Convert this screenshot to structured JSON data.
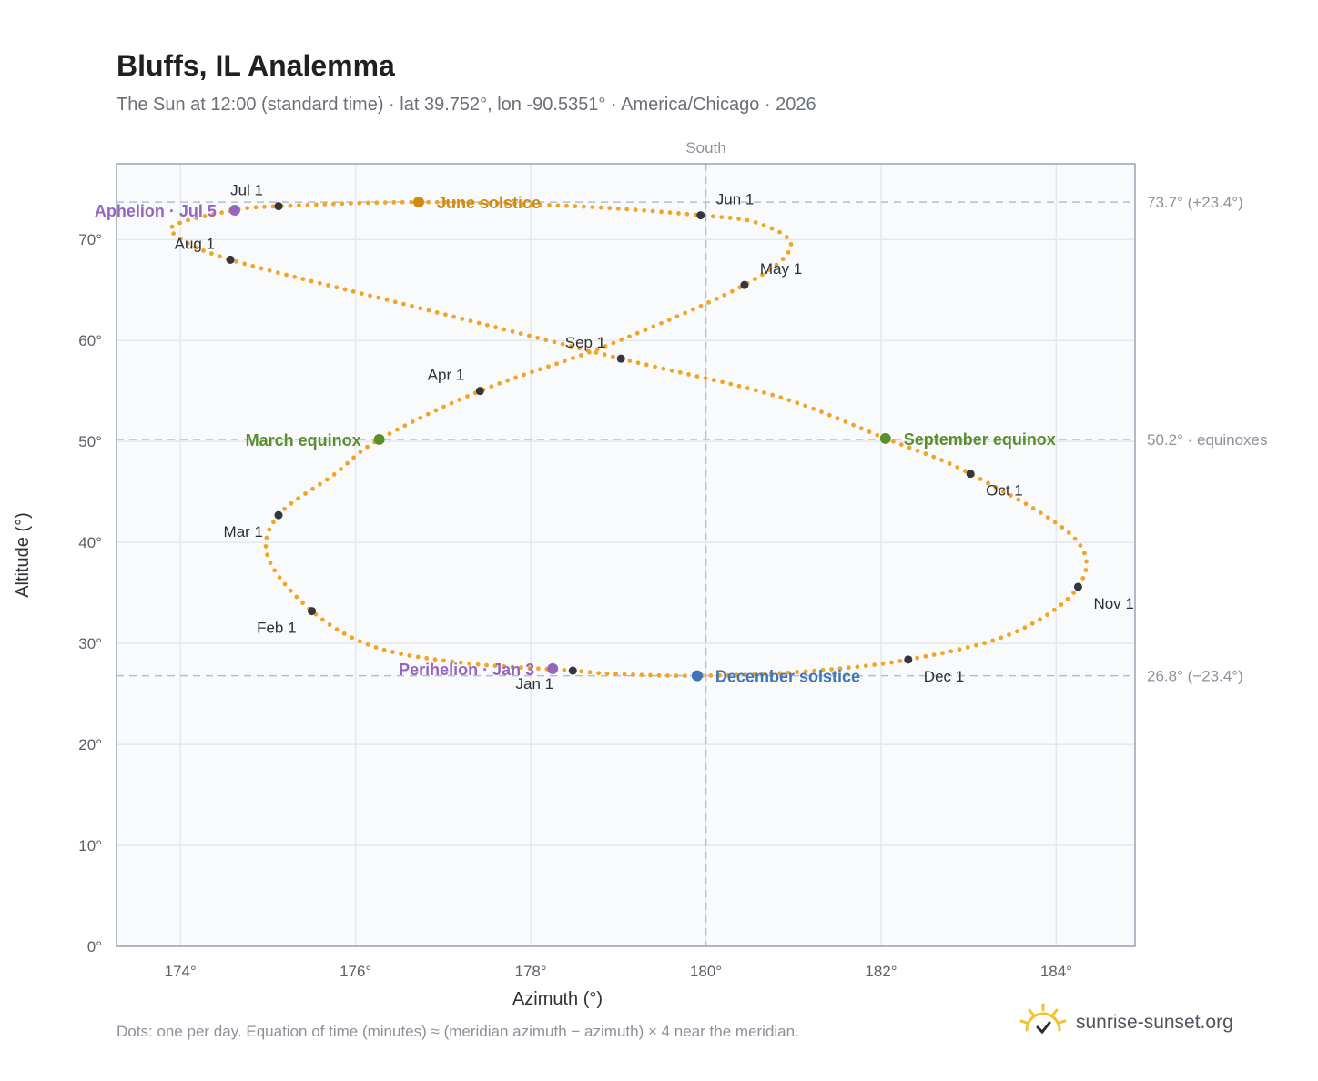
{
  "header": {
    "title": "Bluffs, IL Analemma",
    "subtitle": "The Sun at 12:00 (standard time) · lat 39.752°, lon -90.5351° · America/Chicago · 2026"
  },
  "footnote": "Dots: one per day. Equation of time (minutes) ≈ (meridian azimuth − azimuth) × 4 near the meridian.",
  "brand": {
    "text": "sunrise-sunset.org",
    "icon": "sun-logo-icon"
  },
  "colors": {
    "path": "#f2a524",
    "month_marker": "#34363d",
    "june_solstice": "#d18a0e",
    "december_solstice": "#3e74b8",
    "equinox": "#5a8f2e",
    "apsis": "#9467bd",
    "plot_background": "#f8fafc",
    "grid": "#e4e8ee",
    "reference_line": "#b4bfcb"
  },
  "chart_data": {
    "type": "scatter",
    "title": "Bluffs, IL Analemma",
    "xlabel": "Azimuth (°)",
    "ylabel": "Altitude (°)",
    "xlim": [
      173.27,
      184.9
    ],
    "ylim": [
      0,
      77.5
    ],
    "x_ticks": [
      {
        "value": 174,
        "label": "174°"
      },
      {
        "value": 176,
        "label": "176°"
      },
      {
        "value": 178,
        "label": "178°"
      },
      {
        "value": 180,
        "label": "180°"
      },
      {
        "value": 182,
        "label": "182°"
      },
      {
        "value": 184,
        "label": "184°"
      }
    ],
    "y_ticks": [
      {
        "value": 0,
        "label": "0°"
      },
      {
        "value": 10,
        "label": "10°"
      },
      {
        "value": 20,
        "label": "20°"
      },
      {
        "value": 30,
        "label": "30°"
      },
      {
        "value": 40,
        "label": "40°"
      },
      {
        "value": 50,
        "label": "50°"
      },
      {
        "value": 60,
        "label": "60°"
      },
      {
        "value": 70,
        "label": "70°"
      }
    ],
    "grid": true,
    "meridian": {
      "azimuth": 180,
      "label": "South"
    },
    "reference_lines": [
      {
        "altitude": 73.7,
        "label": "73.7° (+23.4°)"
      },
      {
        "altitude": 50.2,
        "label": "50.2° · equinoxes"
      },
      {
        "altitude": 26.8,
        "label": "26.8° (−23.4°)"
      }
    ],
    "daily_path_keypoints": [
      {
        "az": 178.48,
        "alt": 27.3
      },
      {
        "az": 177.2,
        "alt": 28.1
      },
      {
        "az": 176.2,
        "alt": 29.7
      },
      {
        "az": 175.5,
        "alt": 33.2
      },
      {
        "az": 175.0,
        "alt": 38.5
      },
      {
        "az": 175.12,
        "alt": 42.7
      },
      {
        "az": 175.75,
        "alt": 46.7
      },
      {
        "az": 176.27,
        "alt": 50.2
      },
      {
        "az": 177.42,
        "alt": 55.0
      },
      {
        "az": 178.9,
        "alt": 59.6
      },
      {
        "az": 180.44,
        "alt": 65.5
      },
      {
        "az": 180.97,
        "alt": 69.3
      },
      {
        "az": 180.6,
        "alt": 71.6
      },
      {
        "az": 179.94,
        "alt": 72.4
      },
      {
        "az": 178.5,
        "alt": 73.3
      },
      {
        "az": 176.72,
        "alt": 73.7
      },
      {
        "az": 175.12,
        "alt": 73.3
      },
      {
        "az": 174.62,
        "alt": 72.9
      },
      {
        "az": 173.98,
        "alt": 71.6
      },
      {
        "az": 173.95,
        "alt": 70.4
      },
      {
        "az": 174.57,
        "alt": 68.0
      },
      {
        "az": 176.6,
        "alt": 63.5
      },
      {
        "az": 179.03,
        "alt": 58.2
      },
      {
        "az": 180.8,
        "alt": 54.5
      },
      {
        "az": 182.05,
        "alt": 50.3
      },
      {
        "az": 183.02,
        "alt": 46.8
      },
      {
        "az": 184.2,
        "alt": 40.5
      },
      {
        "az": 184.25,
        "alt": 35.6
      },
      {
        "az": 183.5,
        "alt": 31.0
      },
      {
        "az": 182.31,
        "alt": 28.4
      },
      {
        "az": 181.1,
        "alt": 27.2
      },
      {
        "az": 179.9,
        "alt": 26.8
      },
      {
        "az": 178.9,
        "alt": 27.0
      },
      {
        "az": 178.48,
        "alt": 27.3
      }
    ],
    "month_markers": [
      {
        "label": "Jan 1",
        "az": 178.48,
        "alt": 27.3,
        "anchor": "middle",
        "dx": -42,
        "dy": 20
      },
      {
        "label": "Feb 1",
        "az": 175.5,
        "alt": 33.2,
        "anchor": "end",
        "dx": -17,
        "dy": 24
      },
      {
        "label": "Mar 1",
        "az": 175.12,
        "alt": 42.7,
        "anchor": "end",
        "dx": -17,
        "dy": 24
      },
      {
        "label": "Apr 1",
        "az": 177.42,
        "alt": 55.0,
        "anchor": "end",
        "dx": -17,
        "dy": -12
      },
      {
        "label": "May 1",
        "az": 180.44,
        "alt": 65.5,
        "anchor": "start",
        "dx": 17,
        "dy": -12
      },
      {
        "label": "Jun 1",
        "az": 179.94,
        "alt": 72.4,
        "anchor": "start",
        "dx": 17,
        "dy": -12
      },
      {
        "label": "Jul 1",
        "az": 175.12,
        "alt": 73.3,
        "anchor": "end",
        "dx": -17,
        "dy": -12
      },
      {
        "label": "Aug 1",
        "az": 174.57,
        "alt": 68.0,
        "anchor": "end",
        "dx": -17,
        "dy": -12
      },
      {
        "label": "Sep 1",
        "az": 179.03,
        "alt": 58.2,
        "anchor": "end",
        "dx": -17,
        "dy": -12
      },
      {
        "label": "Oct 1",
        "az": 183.02,
        "alt": 46.8,
        "anchor": "start",
        "dx": 17,
        "dy": 24
      },
      {
        "label": "Nov 1",
        "az": 184.25,
        "alt": 35.6,
        "anchor": "start",
        "dx": 17,
        "dy": 24
      },
      {
        "label": "Dec 1",
        "az": 182.31,
        "alt": 28.4,
        "anchor": "start",
        "dx": 17,
        "dy": 24
      }
    ],
    "events": [
      {
        "label": "June solstice",
        "az": 176.72,
        "alt": 73.7,
        "color_key": "june_solstice",
        "anchor": "start",
        "dx": 20,
        "dy": 7
      },
      {
        "label": "December solstice",
        "az": 179.9,
        "alt": 26.8,
        "color_key": "december_solstice",
        "anchor": "start",
        "dx": 20,
        "dy": 7
      },
      {
        "label": "March equinox",
        "az": 176.27,
        "alt": 50.2,
        "color_key": "equinox",
        "anchor": "end",
        "dx": -20,
        "dy": 7
      },
      {
        "label": "September equinox",
        "az": 182.05,
        "alt": 50.3,
        "color_key": "equinox",
        "anchor": "start",
        "dx": 20,
        "dy": 7
      },
      {
        "label": "Aphelion · Jul 5",
        "az": 174.62,
        "alt": 72.9,
        "color_key": "apsis",
        "anchor": "end",
        "dx": -20,
        "dy": 7
      },
      {
        "label": "Perihelion · Jan 3",
        "az": 178.25,
        "alt": 27.5,
        "color_key": "apsis",
        "anchor": "end",
        "dx": -20,
        "dy": 7
      }
    ]
  }
}
